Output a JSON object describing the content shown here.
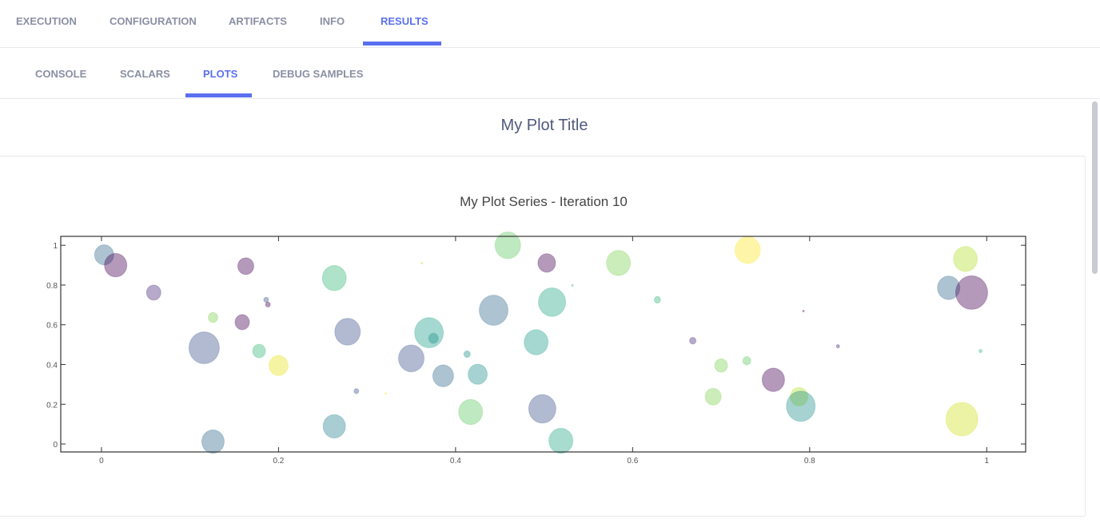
{
  "tabs": {
    "items": [
      {
        "label": "EXECUTION"
      },
      {
        "label": "CONFIGURATION"
      },
      {
        "label": "ARTIFACTS"
      },
      {
        "label": "INFO"
      },
      {
        "label": "RESULTS"
      }
    ],
    "active": "RESULTS"
  },
  "subtabs": {
    "items": [
      {
        "label": "CONSOLE"
      },
      {
        "label": "SCALARS"
      },
      {
        "label": "PLOTS"
      },
      {
        "label": "DEBUG SAMPLES"
      }
    ],
    "active": "PLOTS"
  },
  "accent_color": "#5a6ff0",
  "plot_title": "My Plot Title",
  "chart_data": {
    "type": "scatter",
    "title": "My Plot Series - Iteration 10",
    "xlabel": "",
    "ylabel": "",
    "xlim": [
      -0.046,
      1.044
    ],
    "ylim": [
      -0.04,
      1.045
    ],
    "xticks": [
      "0",
      "0.2",
      "0.4",
      "0.6",
      "0.8",
      "1"
    ],
    "xtick_values": [
      0,
      0.2,
      0.4,
      0.6,
      0.8,
      1
    ],
    "yticks": [
      "0",
      "0.2",
      "0.4",
      "0.6",
      "0.8",
      "1"
    ],
    "ytick_values": [
      0,
      0.2,
      0.4,
      0.6,
      0.8,
      1
    ],
    "grid": false,
    "marker_opacity": 0.4,
    "points_fields": [
      "x",
      "y",
      "size",
      "color"
    ],
    "points": [
      [
        0.003,
        0.952,
        24,
        "#31688e"
      ],
      [
        0.016,
        0.9,
        28,
        "#440154"
      ],
      [
        0.059,
        0.762,
        18,
        "#482878"
      ],
      [
        0.163,
        0.895,
        20,
        "#440154"
      ],
      [
        0.126,
        0.637,
        12,
        "#7ad151"
      ],
      [
        0.159,
        0.613,
        18,
        "#440154"
      ],
      [
        0.116,
        0.484,
        38,
        "#3b528b"
      ],
      [
        0.186,
        0.726,
        6,
        "#3b528b"
      ],
      [
        0.188,
        0.702,
        6,
        "#440154"
      ],
      [
        0.178,
        0.468,
        16,
        "#35b779"
      ],
      [
        0.2,
        0.395,
        24,
        "#e6e419"
      ],
      [
        0.126,
        0.012,
        28,
        "#31688e"
      ],
      [
        0.263,
        0.835,
        30,
        "#35b779"
      ],
      [
        0.278,
        0.565,
        32,
        "#3b528b"
      ],
      [
        0.288,
        0.266,
        6,
        "#3b528b"
      ],
      [
        0.263,
        0.089,
        28,
        "#26828e"
      ],
      [
        0.321,
        0.254,
        2,
        "#fde725"
      ],
      [
        0.362,
        0.91,
        2,
        "#b5de2b"
      ],
      [
        0.35,
        0.431,
        32,
        "#3b528b"
      ],
      [
        0.37,
        0.56,
        36,
        "#1f9e89"
      ],
      [
        0.375,
        0.532,
        12,
        "#21918c"
      ],
      [
        0.386,
        0.343,
        26,
        "#31688e"
      ],
      [
        0.413,
        0.452,
        8,
        "#21918c"
      ],
      [
        0.425,
        0.351,
        24,
        "#21918c"
      ],
      [
        0.417,
        0.161,
        30,
        "#5ec962"
      ],
      [
        0.443,
        0.673,
        36,
        "#31688e"
      ],
      [
        0.459,
        1.0,
        32,
        "#5ec962"
      ],
      [
        0.503,
        0.911,
        22,
        "#440154"
      ],
      [
        0.509,
        0.714,
        34,
        "#22a884"
      ],
      [
        0.491,
        0.512,
        30,
        "#1f9e89"
      ],
      [
        0.498,
        0.177,
        34,
        "#3b528b"
      ],
      [
        0.519,
        0.016,
        30,
        "#22a884"
      ],
      [
        0.532,
        0.798,
        2,
        "#22a884"
      ],
      [
        0.584,
        0.911,
        30,
        "#7ad151"
      ],
      [
        0.628,
        0.726,
        8,
        "#35b779"
      ],
      [
        0.668,
        0.52,
        8,
        "#482878"
      ],
      [
        0.7,
        0.395,
        16,
        "#7ad151"
      ],
      [
        0.691,
        0.238,
        20,
        "#7ad151"
      ],
      [
        0.729,
        0.419,
        10,
        "#5ec962"
      ],
      [
        0.73,
        0.976,
        32,
        "#fde725"
      ],
      [
        0.759,
        0.323,
        28,
        "#440154"
      ],
      [
        0.788,
        0.238,
        22,
        "#b5de2b"
      ],
      [
        0.79,
        0.19,
        36,
        "#21918c"
      ],
      [
        0.793,
        0.669,
        2,
        "#440154"
      ],
      [
        0.832,
        0.492,
        4,
        "#482878"
      ],
      [
        0.957,
        0.786,
        28,
        "#31688e"
      ],
      [
        0.976,
        0.931,
        30,
        "#b5de2b"
      ],
      [
        0.983,
        0.762,
        40,
        "#440154"
      ],
      [
        0.972,
        0.125,
        40,
        "#d0e11c"
      ],
      [
        0.993,
        0.468,
        4,
        "#35b779"
      ]
    ]
  }
}
